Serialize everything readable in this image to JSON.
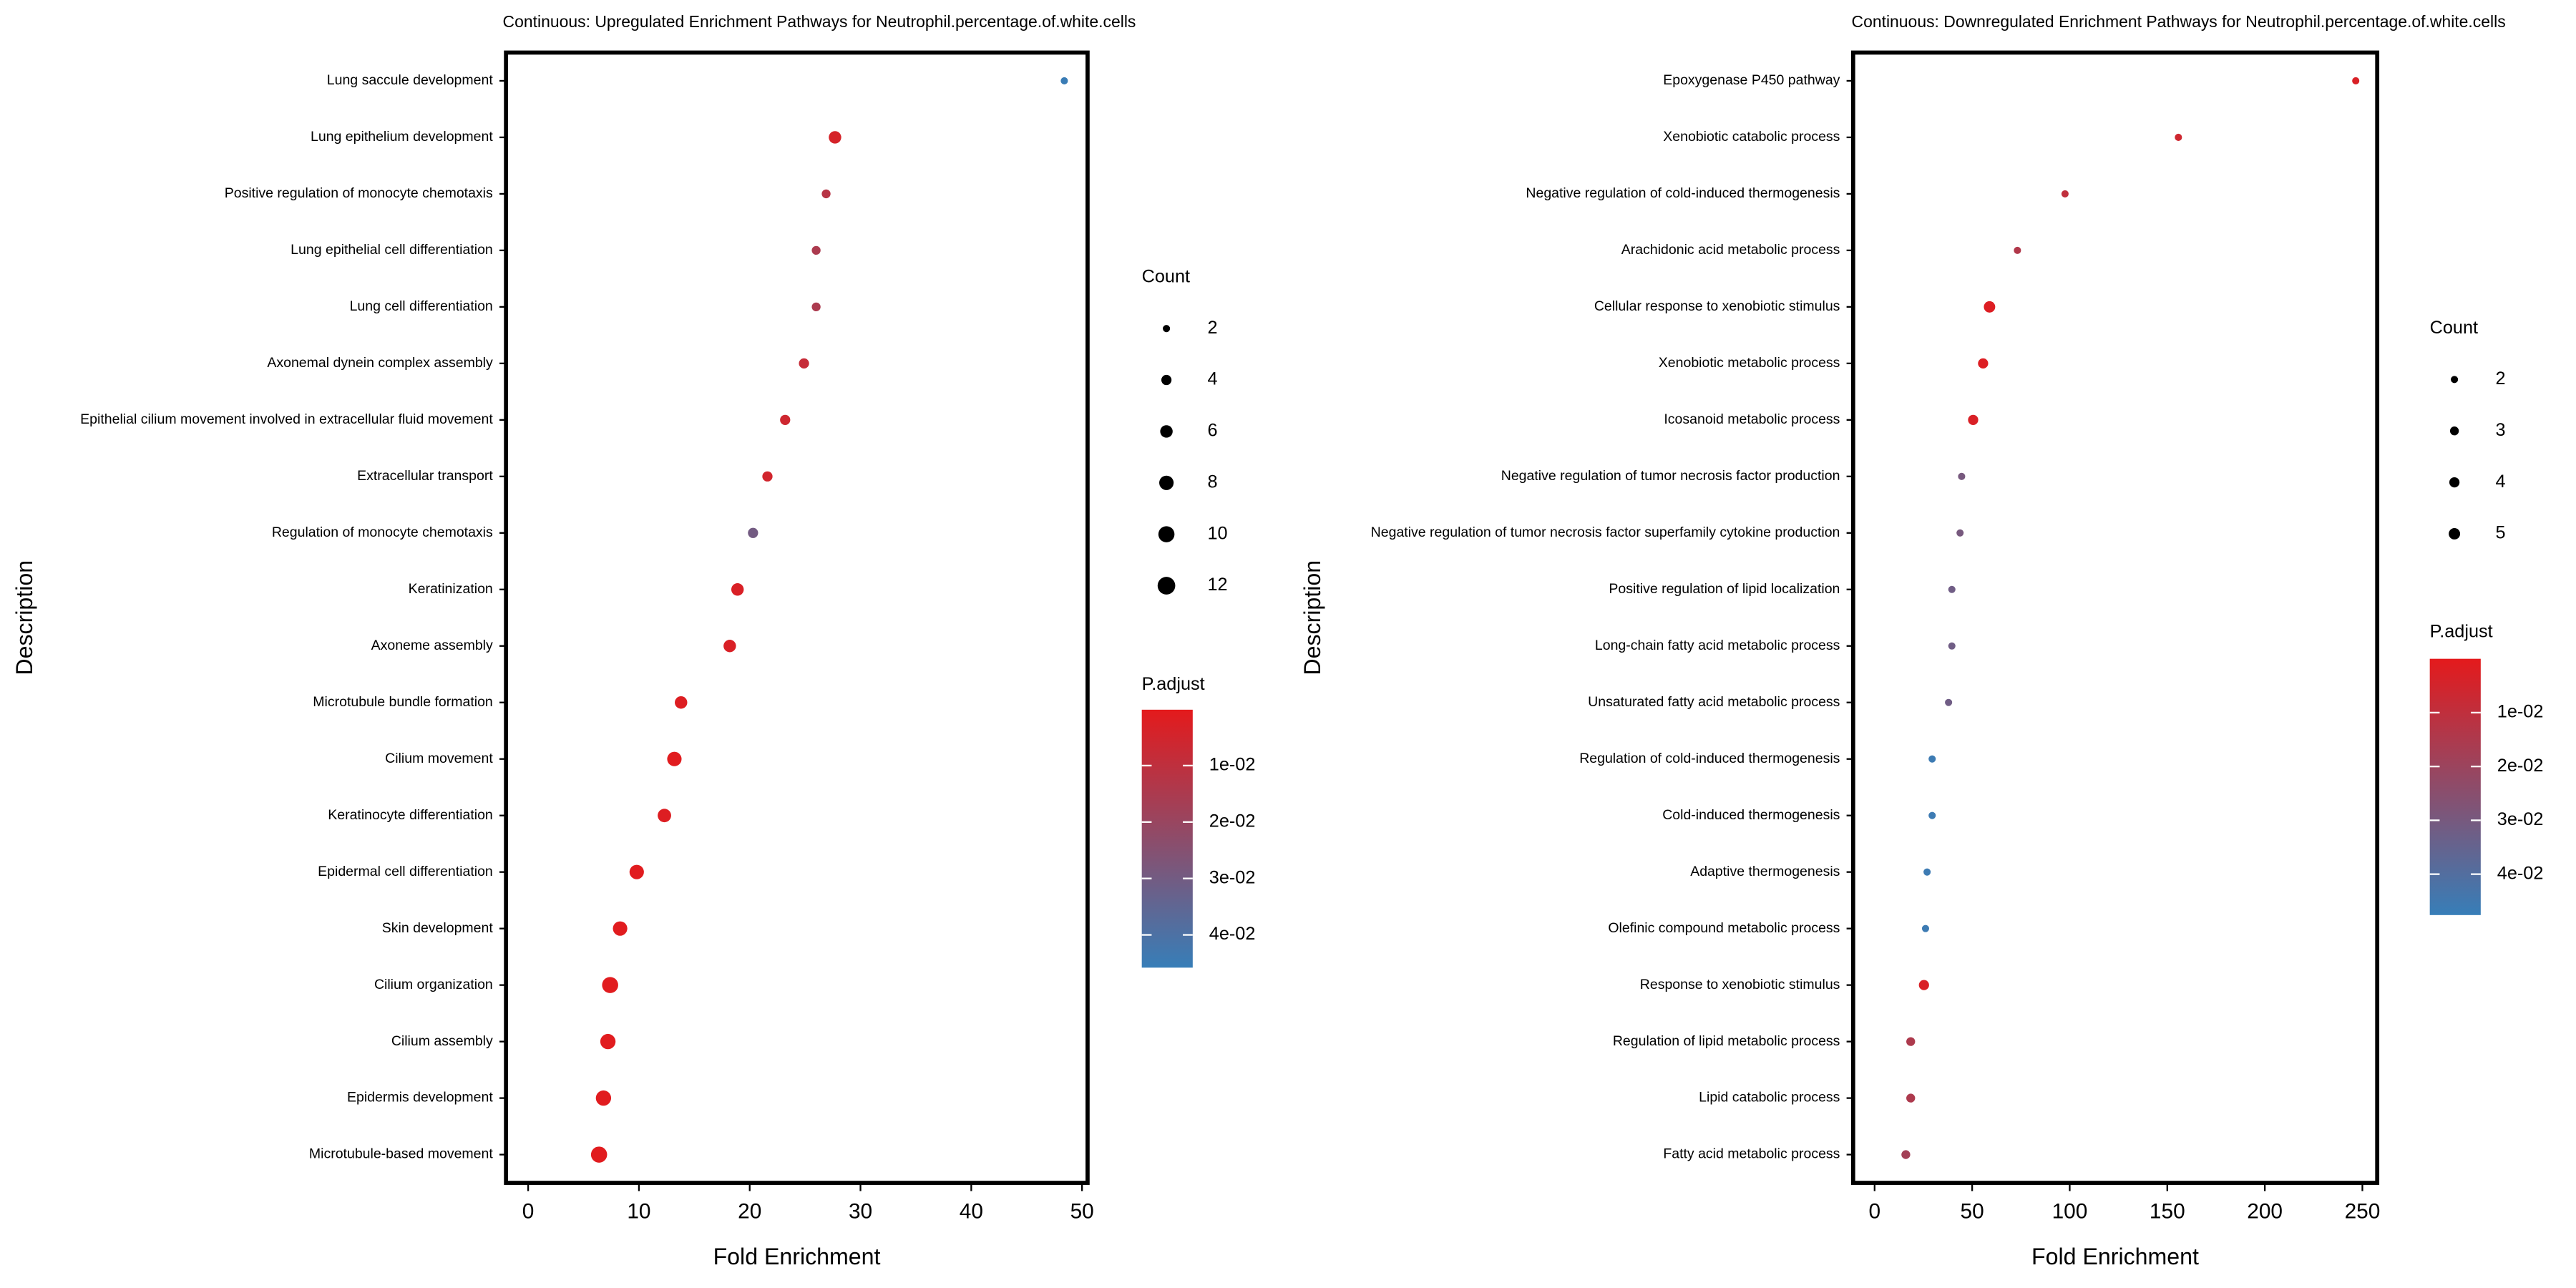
{
  "chart_data": [
    {
      "type": "dotplot",
      "title": "Continuous: Upregulated Enrichment Pathways for Neutrophil.percentage.of.white.cells",
      "xlabel": "Fold Enrichment",
      "ylabel": "Description",
      "categories": [
        "Lung saccule development",
        "Lung epithelium development",
        "Positive regulation of monocyte chemotaxis",
        "Lung epithelial cell differentiation",
        "Lung cell differentiation",
        "Axonemal dynein complex assembly",
        "Epithelial cilium movement involved in extracellular fluid movement",
        "Extracellular transport",
        "Regulation of monocyte chemotaxis",
        "Keratinization",
        "Axoneme assembly",
        "Microtubule bundle formation",
        "Cilium movement",
        "Keratinocyte differentiation",
        "Epidermal cell differentiation",
        "Skin development",
        "Cilium organization",
        "Cilium assembly",
        "Epidermis development",
        "Microtubule-based movement"
      ],
      "values": [
        48.4,
        27.7,
        26.9,
        26.0,
        26.0,
        24.9,
        23.2,
        21.6,
        20.3,
        18.9,
        18.2,
        13.8,
        13.2,
        12.3,
        9.8,
        8.3,
        7.4,
        7.2,
        6.8,
        6.4
      ],
      "counts": [
        2,
        6,
        3,
        3,
        3,
        4,
        4,
        4,
        4,
        6,
        6,
        6,
        8,
        7,
        8,
        8,
        10,
        9,
        9,
        10
      ],
      "p_adjust": [
        0.045,
        0.004,
        0.012,
        0.015,
        0.015,
        0.008,
        0.006,
        0.005,
        0.03,
        0.003,
        0.003,
        0.002,
        0.001,
        0.002,
        0.001,
        0.001,
        0.001,
        0.001,
        0.001,
        0.001
      ],
      "xlim": [
        -2,
        50.5
      ],
      "xticks": [
        0,
        10,
        20,
        30,
        40,
        50
      ],
      "size_legend_title": "Count",
      "size_ticks": [
        2,
        4,
        6,
        8,
        10,
        12
      ],
      "color_legend_title": "P.adjust",
      "clim": [
        0.0001,
        0.0458
      ],
      "color_ticks": [
        {
          "value": 0.01,
          "label": "1e-02"
        },
        {
          "value": 0.02,
          "label": "2e-02"
        },
        {
          "value": 0.03,
          "label": "3e-02"
        },
        {
          "value": 0.04,
          "label": "4e-02"
        }
      ],
      "colors": {
        "low": "#e41a1c",
        "high": "#377eb8"
      }
    },
    {
      "type": "dotplot",
      "title": "Continuous: Downregulated Enrichment Pathways for Neutrophil.percentage.of.white.cells",
      "xlabel": "Fold Enrichment",
      "ylabel": "Description",
      "categories": [
        "Epoxygenase P450 pathway",
        "Xenobiotic catabolic process",
        "Negative regulation of cold-induced thermogenesis",
        "Arachidonic acid metabolic process",
        "Cellular response to xenobiotic stimulus",
        "Xenobiotic metabolic process",
        "Icosanoid metabolic process",
        "Negative regulation of tumor necrosis factor production",
        "Negative regulation of tumor necrosis factor superfamily cytokine production",
        "Positive regulation of lipid localization",
        "Long-chain fatty acid metabolic process",
        "Unsaturated fatty acid metabolic process",
        "Regulation of cold-induced thermogenesis",
        "Cold-induced thermogenesis",
        "Adaptive thermogenesis",
        "Olefinic compound metabolic process",
        "Response to xenobiotic stimulus",
        "Regulation of lipid metabolic process",
        "Lipid catabolic process",
        "Fatty acid metabolic process"
      ],
      "values": [
        246.6,
        155.7,
        97.6,
        73.2,
        58.9,
        55.6,
        50.5,
        44.6,
        43.8,
        39.6,
        39.6,
        37.9,
        29.5,
        29.5,
        26.9,
        26.1,
        25.3,
        18.5,
        18.5,
        16.0
      ],
      "counts": [
        2,
        2,
        2,
        2,
        5,
        4,
        4,
        2,
        2,
        2,
        2,
        2,
        2,
        2,
        2,
        2,
        4,
        3,
        3,
        3
      ],
      "p_adjust": [
        0.003,
        0.006,
        0.01,
        0.014,
        0.002,
        0.002,
        0.003,
        0.03,
        0.03,
        0.032,
        0.032,
        0.032,
        0.046,
        0.046,
        0.046,
        0.046,
        0.003,
        0.015,
        0.015,
        0.018
      ],
      "xlim": [
        -11,
        257.6
      ],
      "xticks": [
        0,
        50,
        100,
        150,
        200,
        250
      ],
      "size_legend_title": "Count",
      "size_ticks": [
        2,
        3,
        4,
        5
      ],
      "color_legend_title": "P.adjust",
      "clim": [
        0.0,
        0.0476
      ],
      "color_ticks": [
        {
          "value": 0.01,
          "label": "1e-02"
        },
        {
          "value": 0.02,
          "label": "2e-02"
        },
        {
          "value": 0.03,
          "label": "3e-02"
        },
        {
          "value": 0.04,
          "label": "4e-02"
        }
      ],
      "colors": {
        "low": "#e41a1c",
        "high": "#377eb8"
      }
    }
  ]
}
